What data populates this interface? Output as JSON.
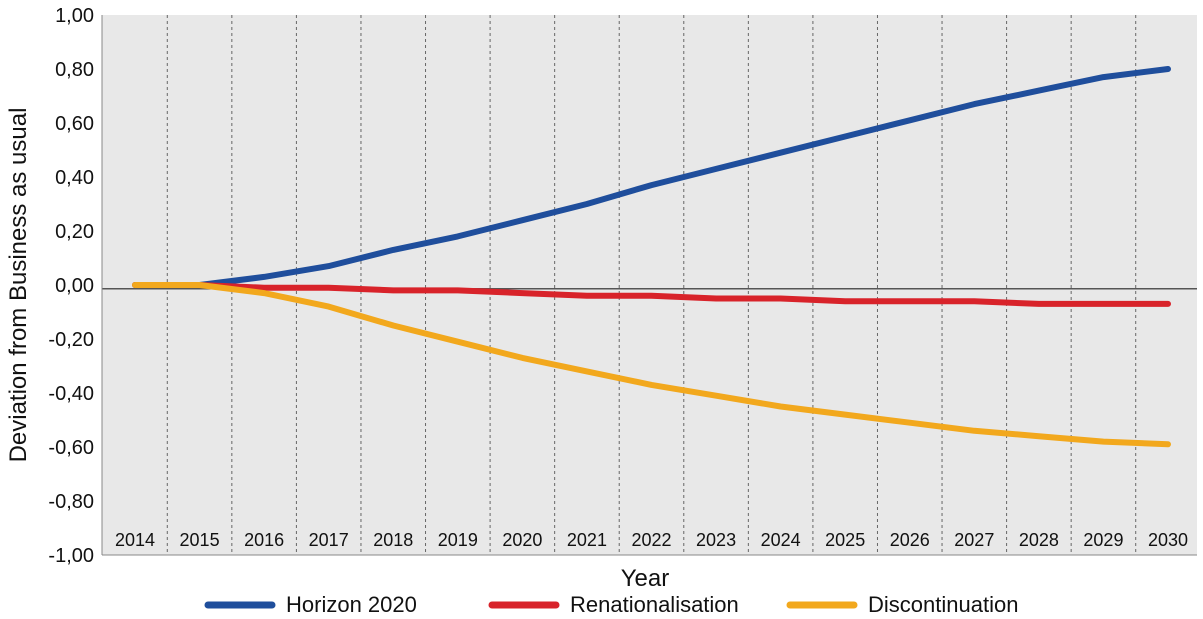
{
  "chart_data": {
    "type": "line",
    "xlabel": "Year",
    "ylabel": "Deviation from Business as usual",
    "ylim": [
      -1.0,
      1.0
    ],
    "yticks": [
      "1,00",
      "0,80",
      "0,60",
      "0,40",
      "0,20",
      "0,00",
      "-0,20",
      "-0,40",
      "-0,60",
      "-0,80",
      "-1,00"
    ],
    "x": [
      "2014",
      "2015",
      "2016",
      "2017",
      "2018",
      "2019",
      "2020",
      "2021",
      "2022",
      "2023",
      "2024",
      "2025",
      "2026",
      "2027",
      "2028",
      "2029",
      "2030"
    ],
    "grid": "vertical dashed",
    "legend_position": "bottom",
    "series": [
      {
        "name": "Horizon 2020",
        "color": "#1f4e9c",
        "values": [
          0.0,
          0.0,
          0.03,
          0.07,
          0.13,
          0.18,
          0.24,
          0.3,
          0.37,
          0.43,
          0.49,
          0.55,
          0.61,
          0.67,
          0.72,
          0.77,
          0.8
        ]
      },
      {
        "name": "Renationalisation",
        "color": "#d8232a",
        "values": [
          0.0,
          0.0,
          -0.01,
          -0.01,
          -0.02,
          -0.02,
          -0.03,
          -0.04,
          -0.04,
          -0.05,
          -0.05,
          -0.06,
          -0.06,
          -0.06,
          -0.07,
          -0.07,
          -0.07
        ]
      },
      {
        "name": "Discontinuation",
        "color": "#f2a81d",
        "values": [
          0.0,
          0.0,
          -0.03,
          -0.08,
          -0.15,
          -0.21,
          -0.27,
          -0.32,
          -0.37,
          -0.41,
          -0.45,
          -0.48,
          -0.51,
          -0.54,
          -0.56,
          -0.58,
          -0.59
        ]
      }
    ]
  }
}
